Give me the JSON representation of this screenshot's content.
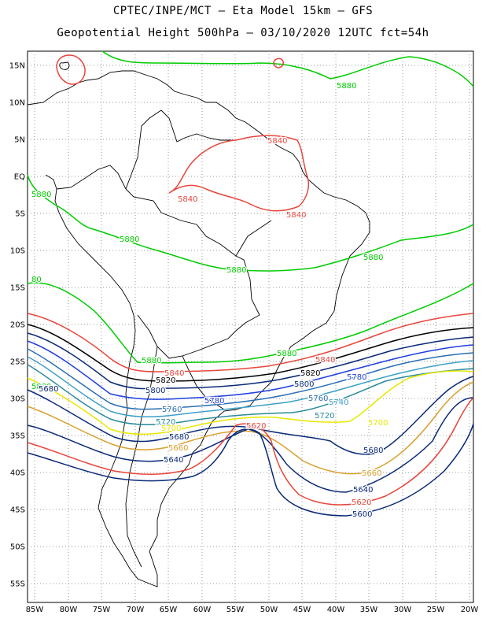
{
  "header": {
    "line1": "CPTEC/INPE/MCT –  Eta Model 15km – GFS",
    "line2": "Geopotential Height 500hPa – 03/10/2020 12UTC fct=54h"
  },
  "lat_labels": [
    "15N",
    "10N",
    "5N",
    "EQ",
    "5S",
    "10S",
    "15S",
    "20S",
    "25S",
    "30S",
    "35S",
    "40S",
    "45S",
    "50S",
    "55S"
  ],
  "lon_labels": [
    "85W",
    "80W",
    "75W",
    "70W",
    "65W",
    "60W",
    "55W",
    "50W",
    "45W",
    "40W",
    "35W",
    "30W",
    "25W",
    "20W"
  ],
  "colors": {
    "5880": "#00cc00",
    "5840": "#e8463c",
    "5820": "#000000",
    "5800": "#0a2a78",
    "5780": "#1f3fe0",
    "5760": "#2a6fb5",
    "5740": "#3ea0c8",
    "5720": "#2a8a9a",
    "5700": "#e8e800",
    "5680": "#d8a030",
    "5660": "#d8a030",
    "5640": "#0a2a78",
    "5620": "#e8463c",
    "5600": "#0a2a78",
    "coast": "#000000",
    "grid": "#9a9a9a"
  },
  "contour_labels": [
    {
      "text": "5880",
      "color": "5880"
    },
    {
      "text": "5880",
      "color": "5880"
    },
    {
      "text": "5880",
      "color": "5880"
    },
    {
      "text": "5880",
      "color": "5880"
    },
    {
      "text": "5880",
      "color": "5880"
    },
    {
      "text": "5880",
      "color": "5880"
    },
    {
      "text": "5880",
      "color": "5880"
    },
    {
      "text": "5880",
      "color": "5880"
    },
    {
      "text": "80",
      "color": "5880"
    },
    {
      "text": "5840",
      "color": "5840"
    },
    {
      "text": "5840",
      "color": "5840"
    },
    {
      "text": "5840",
      "color": "5840"
    },
    {
      "text": "5840",
      "color": "5840"
    },
    {
      "text": "5840",
      "color": "5840"
    },
    {
      "text": "5820",
      "color": "5820"
    },
    {
      "text": "5820",
      "color": "5820"
    },
    {
      "text": "5800",
      "color": "5800"
    },
    {
      "text": "5800",
      "color": "5800"
    },
    {
      "text": "5800",
      "color": "5800"
    },
    {
      "text": "5780",
      "color": "5780"
    },
    {
      "text": "5780",
      "color": "5780"
    },
    {
      "text": "5760",
      "color": "5760"
    },
    {
      "text": "5760",
      "color": "5760"
    },
    {
      "text": "5740",
      "color": "5740"
    },
    {
      "text": "5720",
      "color": "5720"
    },
    {
      "text": "5720",
      "color": "5720"
    },
    {
      "text": "5700",
      "color": "5700"
    },
    {
      "text": "5700",
      "color": "5700"
    },
    {
      "text": "5680",
      "color": "5800"
    },
    {
      "text": "5680",
      "color": "5800"
    },
    {
      "text": "5680",
      "color": "5800"
    },
    {
      "text": "5660",
      "color": "5660"
    },
    {
      "text": "5660",
      "color": "5660"
    },
    {
      "text": "5640",
      "color": "5640"
    },
    {
      "text": "5640",
      "color": "5640"
    },
    {
      "text": "5620",
      "color": "5620"
    },
    {
      "text": "5620",
      "color": "5620"
    },
    {
      "text": "5600",
      "color": "5600"
    }
  ]
}
